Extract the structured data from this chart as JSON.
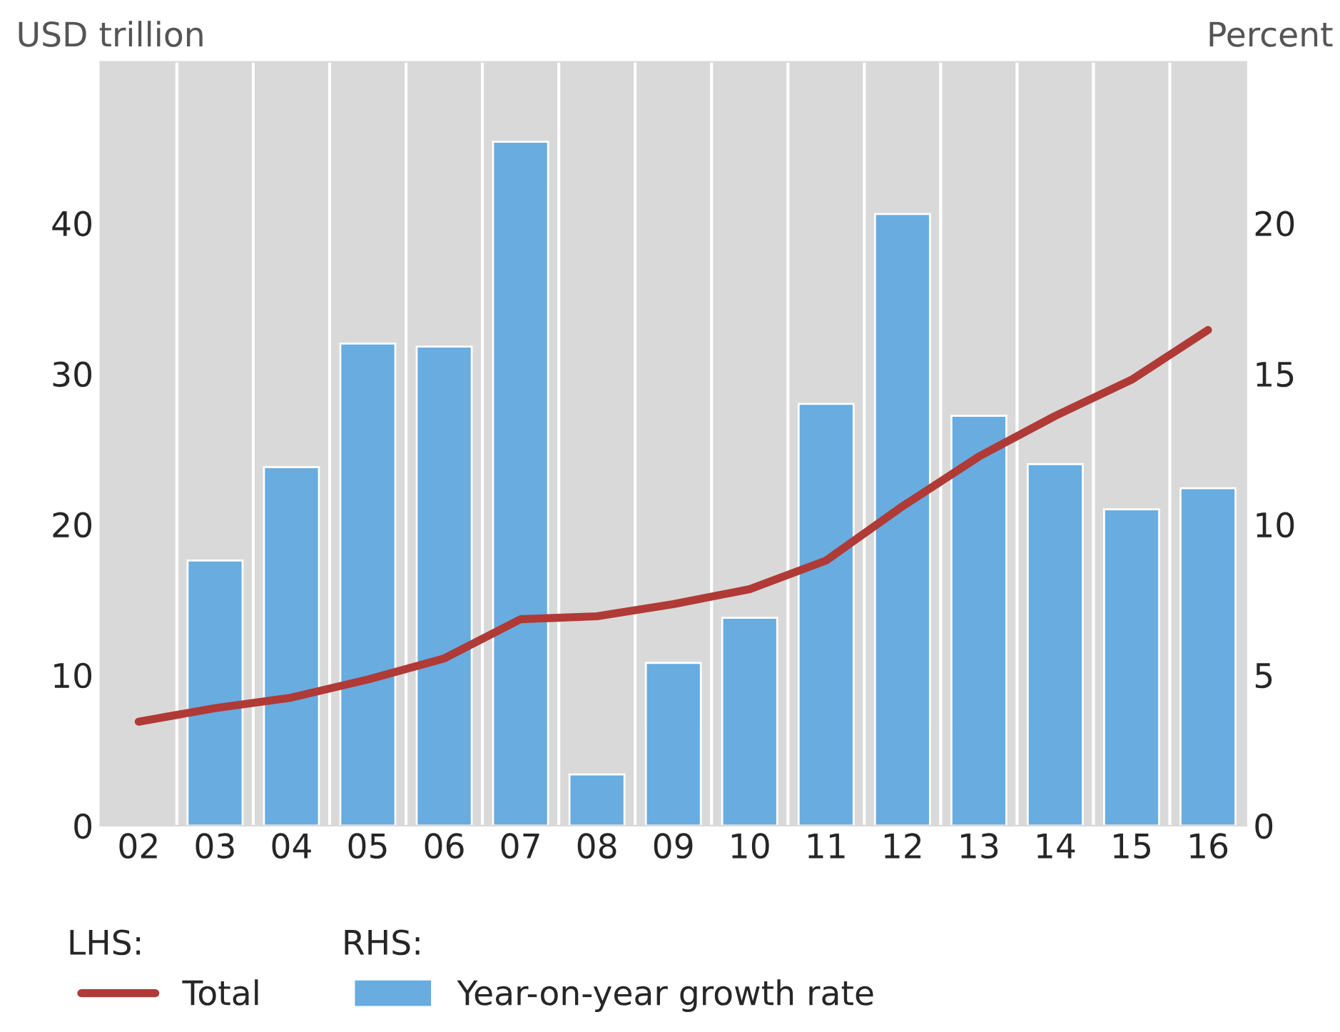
{
  "chart_data": {
    "type": "bar",
    "categories": [
      "02",
      "03",
      "04",
      "05",
      "06",
      "07",
      "08",
      "09",
      "10",
      "11",
      "12",
      "13",
      "14",
      "15",
      "16"
    ],
    "ylabel": "USD trillion",
    "y2label": "Percent",
    "ylim": [
      0,
      50.7
    ],
    "yticks": [
      0,
      10,
      20,
      30,
      40
    ],
    "y2lim": [
      0,
      25.35
    ],
    "y2ticks": [
      0,
      5,
      10,
      15,
      20
    ],
    "grid": "x",
    "legend": "bottom",
    "annotations": [
      "LHS:",
      "RHS:"
    ],
    "series": [
      {
        "name": "Total",
        "type": "line",
        "color": "#b03a36",
        "values": [
          6.9,
          7.8,
          8.5,
          9.7,
          11.1,
          13.7,
          13.9,
          14.7,
          15.7,
          17.6,
          21.2,
          24.5,
          27.2,
          29.6,
          32.9
        ]
      },
      {
        "name": "Year-on-year growth rate",
        "axis": "y2",
        "color": "#68ace0",
        "values": [
          null,
          8.8,
          11.9,
          16.0,
          15.9,
          22.7,
          1.7,
          5.4,
          6.9,
          14.0,
          20.3,
          13.6,
          12.0,
          10.5,
          11.2
        ]
      }
    ]
  }
}
